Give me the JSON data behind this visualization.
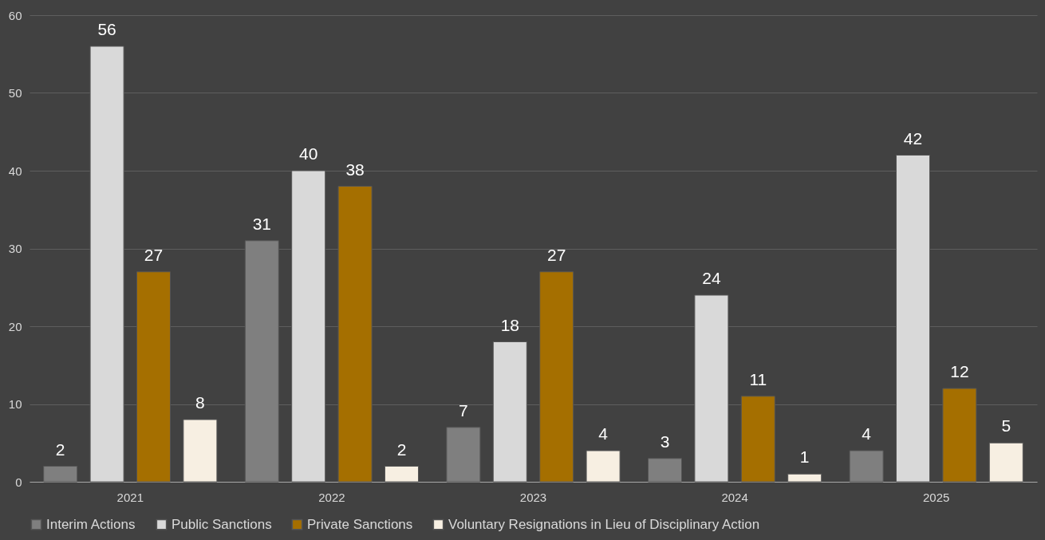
{
  "chart_data": {
    "type": "bar",
    "categories": [
      "2021",
      "2022",
      "2023",
      "2024",
      "2025"
    ],
    "series": [
      {
        "name": "Interim Actions",
        "color": "#7f7f7f",
        "values": [
          2,
          31,
          7,
          3,
          4
        ]
      },
      {
        "name": "Public Sanctions",
        "color": "#d9d9d9",
        "values": [
          56,
          40,
          18,
          24,
          42
        ]
      },
      {
        "name": "Private Sanctions",
        "color": "#a56f00",
        "values": [
          27,
          38,
          27,
          11,
          12
        ]
      },
      {
        "name": "Voluntary Resignations in Lieu of Disciplinary Action",
        "color": "#f7efe2",
        "values": [
          8,
          2,
          4,
          1,
          5
        ]
      }
    ],
    "ylim": [
      0,
      60
    ],
    "yticks": [
      0,
      10,
      20,
      30,
      40,
      50,
      60
    ],
    "grid": "y",
    "legend": "bottom",
    "data_labels": true
  }
}
